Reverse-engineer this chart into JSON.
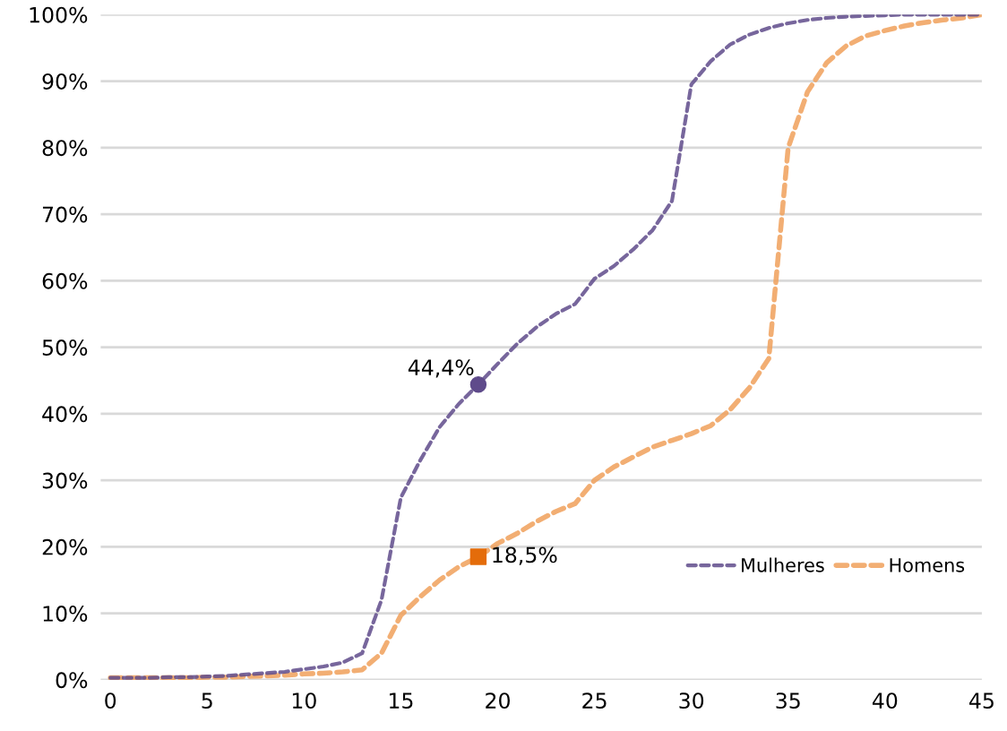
{
  "chart_data": {
    "type": "line",
    "x": [
      0,
      1,
      2,
      3,
      4,
      5,
      6,
      7,
      8,
      9,
      10,
      11,
      12,
      13,
      14,
      15,
      16,
      17,
      18,
      19,
      20,
      21,
      22,
      23,
      24,
      25,
      26,
      27,
      28,
      29,
      30,
      31,
      32,
      33,
      34,
      35,
      36,
      37,
      38,
      39,
      40,
      41,
      42,
      43,
      44,
      45
    ],
    "series": [
      {
        "name": "Mulheres",
        "color": "#5f4b8b",
        "line_style": "dashed",
        "values": [
          0.3,
          0.3,
          0.3,
          0.4,
          0.4,
          0.5,
          0.6,
          0.8,
          1.0,
          1.2,
          1.6,
          2.0,
          2.6,
          4,
          12,
          27.4,
          33,
          38,
          41.5,
          44.4,
          47.5,
          50.5,
          53,
          55,
          56.5,
          60.3,
          62.2,
          64.7,
          67.6,
          72,
          89.5,
          93,
          95.5,
          97,
          98,
          98.7,
          99.2,
          99.5,
          99.7,
          99.8,
          99.9,
          100,
          100,
          100,
          100,
          100
        ]
      },
      {
        "name": "Homens",
        "color": "#f0a05a",
        "line_style": "dashed",
        "values": [
          0.3,
          0.3,
          0.3,
          0.3,
          0.3,
          0.4,
          0.4,
          0.5,
          0.6,
          0.7,
          0.9,
          1.0,
          1.2,
          1.5,
          4,
          9.7,
          12.5,
          15,
          17,
          18.5,
          20.5,
          22,
          23.8,
          25.3,
          26.5,
          30,
          32,
          33.5,
          35,
          36,
          37,
          38.2,
          40.6,
          43.9,
          48.3,
          80,
          88.4,
          92.8,
          95.3,
          96.8,
          97.6,
          98.3,
          98.8,
          99.2,
          99.5,
          100
        ]
      },
      {
        "type": "scatter",
        "x": [
          19
        ],
        "color": "#5f4b8b",
        "marker": "circle",
        "values": [
          44.4
        ],
        "value_labels": [
          "44,4%"
        ]
      },
      {
        "type": "scatter",
        "x": [
          19
        ],
        "color": "#e46c0a",
        "marker": "square",
        "values": [
          18.5
        ],
        "value_labels": [
          "18,5%"
        ]
      }
    ],
    "xlim": [
      -0.5,
      45
    ],
    "xticks": [
      0,
      5,
      10,
      15,
      20,
      25,
      30,
      35,
      40,
      45
    ],
    "ylim": [
      0,
      100
    ],
    "yticks": [
      {
        "value": 0,
        "label": "0%"
      },
      {
        "value": 10,
        "label": "10%"
      },
      {
        "value": 20,
        "label": "20%"
      },
      {
        "value": 30,
        "label": "30%"
      },
      {
        "value": 40,
        "label": "40%"
      },
      {
        "value": 50,
        "label": "50%"
      },
      {
        "value": 60,
        "label": "60%"
      },
      {
        "value": 70,
        "label": "70%"
      },
      {
        "value": 80,
        "label": "80%"
      },
      {
        "value": 90,
        "label": "90%"
      },
      {
        "value": 100,
        "label": "100%"
      }
    ],
    "grid": "y",
    "legend": "right"
  }
}
